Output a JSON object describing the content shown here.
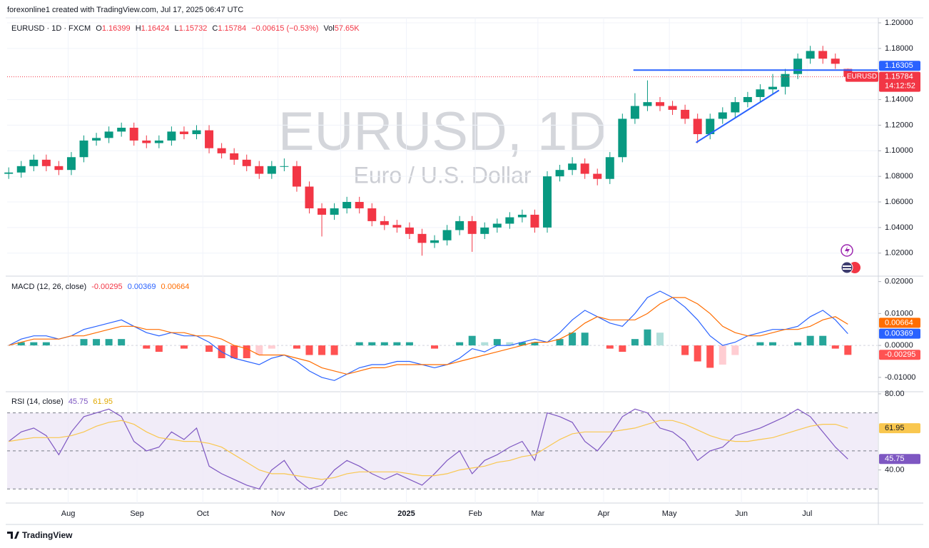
{
  "header": "forexonline1 created with TradingView.com, Jul 17, 2025 06:47 UTC",
  "footer": "TradingView",
  "chart_data": [
    {
      "type": "candlestick",
      "symbol_title": "EURUSD · 1D · FXCM",
      "watermark": "EURUSD, 1D",
      "watermark_sub": "Euro / U.S. Dollar",
      "legend_labels": [
        "O",
        "H",
        "L",
        "C"
      ],
      "change": "−0.00615 (−0.53%)",
      "volume": {
        "label": "Vol",
        "value": "57.65K"
      },
      "price_tag": {
        "label": "EURUSD",
        "countdown": "14:12:52"
      },
      "up_color": "#089981",
      "down_color": "#f23645",
      "x": [
        0,
        4,
        8,
        12,
        16,
        20,
        24,
        28,
        32,
        36,
        40,
        44,
        48,
        52,
        56,
        60,
        64,
        68,
        72,
        76,
        80,
        84,
        88,
        92,
        96,
        100,
        104,
        108,
        112,
        116,
        120,
        124,
        128,
        132,
        136,
        140,
        144,
        148,
        152,
        156,
        160,
        164,
        168,
        172,
        176,
        180,
        184,
        188,
        192,
        196,
        200,
        204,
        208,
        212,
        216,
        220,
        224,
        228,
        232,
        236,
        240,
        244,
        248,
        252,
        256,
        260,
        264,
        268
      ],
      "open": [
        1.082,
        1.083,
        1.088,
        1.093,
        1.088,
        1.085,
        1.095,
        1.108,
        1.11,
        1.115,
        1.118,
        1.108,
        1.106,
        1.108,
        1.115,
        1.113,
        1.116,
        1.102,
        1.098,
        1.093,
        1.088,
        1.082,
        1.088,
        1.088,
        1.072,
        1.055,
        1.05,
        1.055,
        1.06,
        1.055,
        1.045,
        1.042,
        1.04,
        1.035,
        1.028,
        1.03,
        1.038,
        1.045,
        1.035,
        1.04,
        1.043,
        1.048,
        1.05,
        1.04,
        1.08,
        1.085,
        1.09,
        1.082,
        1.078,
        1.095,
        1.125,
        1.135,
        1.138,
        1.135,
        1.132,
        1.125,
        1.113,
        1.125,
        1.13,
        1.138,
        1.142,
        1.148,
        1.15,
        1.16,
        1.172,
        1.178,
        1.172,
        1.16399
      ],
      "high": [
        1.087,
        1.092,
        1.097,
        1.097,
        1.092,
        1.099,
        1.112,
        1.114,
        1.119,
        1.122,
        1.122,
        1.112,
        1.112,
        1.119,
        1.119,
        1.12,
        1.12,
        1.106,
        1.102,
        1.097,
        1.092,
        1.092,
        1.094,
        1.092,
        1.076,
        1.059,
        1.059,
        1.064,
        1.064,
        1.059,
        1.049,
        1.046,
        1.044,
        1.039,
        1.034,
        1.042,
        1.049,
        1.049,
        1.044,
        1.047,
        1.052,
        1.054,
        1.054,
        1.084,
        1.089,
        1.095,
        1.094,
        1.086,
        1.099,
        1.129,
        1.145,
        1.155,
        1.142,
        1.139,
        1.136,
        1.129,
        1.129,
        1.134,
        1.142,
        1.146,
        1.152,
        1.16,
        1.164,
        1.176,
        1.182,
        1.182,
        1.176,
        1.16424
      ],
      "low": [
        1.078,
        1.079,
        1.084,
        1.084,
        1.081,
        1.081,
        1.091,
        1.104,
        1.106,
        1.111,
        1.104,
        1.102,
        1.102,
        1.104,
        1.109,
        1.109,
        1.098,
        1.094,
        1.089,
        1.084,
        1.078,
        1.078,
        1.084,
        1.068,
        1.051,
        1.033,
        1.046,
        1.051,
        1.051,
        1.041,
        1.038,
        1.036,
        1.031,
        1.018,
        1.024,
        1.026,
        1.034,
        1.021,
        1.031,
        1.036,
        1.039,
        1.044,
        1.036,
        1.036,
        1.076,
        1.081,
        1.078,
        1.073,
        1.074,
        1.091,
        1.121,
        1.131,
        1.131,
        1.128,
        1.121,
        1.106,
        1.109,
        1.121,
        1.126,
        1.134,
        1.138,
        1.144,
        1.144,
        1.156,
        1.168,
        1.168,
        1.164,
        1.15732
      ],
      "close": [
        1.083,
        1.088,
        1.093,
        1.088,
        1.085,
        1.095,
        1.108,
        1.11,
        1.115,
        1.118,
        1.108,
        1.106,
        1.108,
        1.115,
        1.113,
        1.116,
        1.102,
        1.098,
        1.093,
        1.088,
        1.082,
        1.088,
        1.088,
        1.072,
        1.055,
        1.05,
        1.055,
        1.06,
        1.055,
        1.045,
        1.042,
        1.04,
        1.035,
        1.028,
        1.03,
        1.038,
        1.045,
        1.035,
        1.04,
        1.043,
        1.048,
        1.05,
        1.04,
        1.08,
        1.085,
        1.09,
        1.082,
        1.078,
        1.095,
        1.125,
        1.135,
        1.138,
        1.135,
        1.132,
        1.125,
        1.113,
        1.125,
        1.13,
        1.138,
        1.142,
        1.148,
        1.15,
        1.16,
        1.172,
        1.178,
        1.172,
        1.168,
        1.15784
      ],
      "drawings": [
        {
          "x": [
            199.5,
            277.5
          ],
          "y": [
            1.16305,
            1.16305
          ],
          "color": "#2962ff"
        },
        {
          "x": [
            219.5,
            246
          ],
          "y": [
            1.1064,
            1.1473
          ],
          "color": "#2962ff"
        }
      ],
      "xlim": [
        -0.5,
        277.5
      ],
      "xticks": [
        {
          "value": 19,
          "label": "Aug"
        },
        {
          "value": 41,
          "label": "Sep"
        },
        {
          "value": 62,
          "label": "Oct"
        },
        {
          "value": 86,
          "label": "Nov"
        },
        {
          "value": 106,
          "label": "Dec"
        },
        {
          "value": 127,
          "label": "2025",
          "bold": true
        },
        {
          "value": 149,
          "label": "Feb"
        },
        {
          "value": 169,
          "label": "Mar"
        },
        {
          "value": 190,
          "label": "Apr"
        },
        {
          "value": 211,
          "label": "May"
        },
        {
          "value": 234,
          "label": "Jun"
        },
        {
          "value": 255,
          "label": "Jul"
        }
      ],
      "ylim": [
        1.002,
        1.2039
      ],
      "yticks": [
        {
          "value": 1.2,
          "label": "1.20000"
        },
        {
          "value": 1.18,
          "label": "1.18000"
        },
        {
          "value": 1.14,
          "label": "1.14000"
        },
        {
          "value": 1.12,
          "label": "1.12000"
        },
        {
          "value": 1.1,
          "label": "1.10000"
        },
        {
          "value": 1.08,
          "label": "1.08000"
        },
        {
          "value": 1.06,
          "label": "1.06000"
        },
        {
          "value": 1.04,
          "label": "1.04000"
        },
        {
          "value": 1.02,
          "label": "1.02000"
        }
      ],
      "grid": true
    },
    {
      "type": "macd",
      "title": "MACD (12, 26, close)",
      "series": [
        {
          "color": "#2962ff",
          "values": [
            0.0,
            0.002,
            0.003,
            0.003,
            0.002,
            0.003,
            0.005,
            0.006,
            0.007,
            0.008,
            0.006,
            0.004,
            0.003,
            0.004,
            0.003,
            0.003,
            0.001,
            -0.002,
            -0.004,
            -0.005,
            -0.006,
            -0.004,
            -0.003,
            -0.005,
            -0.008,
            -0.01,
            -0.011,
            -0.009,
            -0.007,
            -0.006,
            -0.006,
            -0.005,
            -0.005,
            -0.006,
            -0.007,
            -0.006,
            -0.004,
            -0.001,
            -0.002,
            0.0,
            0.0,
            0.001,
            0.002,
            0.001,
            0.004,
            0.008,
            0.011,
            0.009,
            0.007,
            0.006,
            0.01,
            0.015,
            0.017,
            0.015,
            0.012,
            0.008,
            0.003,
            0.0,
            0.001,
            0.003,
            0.004,
            0.005,
            0.005,
            0.006,
            0.009,
            0.011,
            0.008,
            0.00369
          ]
        },
        {
          "color": "#ff6d00",
          "values": [
            0.0,
            0.001,
            0.002,
            0.002,
            0.002,
            0.003,
            0.003,
            0.004,
            0.005,
            0.006,
            0.006,
            0.005,
            0.005,
            0.004,
            0.004,
            0.003,
            0.003,
            0.002,
            0.0,
            -0.001,
            -0.003,
            -0.003,
            -0.003,
            -0.004,
            -0.005,
            -0.007,
            -0.008,
            -0.009,
            -0.008,
            -0.007,
            -0.007,
            -0.006,
            -0.006,
            -0.006,
            -0.006,
            -0.006,
            -0.005,
            -0.004,
            -0.003,
            -0.002,
            -0.001,
            0.0,
            0.001,
            0.001,
            0.002,
            0.004,
            0.007,
            0.009,
            0.008,
            0.008,
            0.008,
            0.01,
            0.013,
            0.015,
            0.015,
            0.013,
            0.01,
            0.006,
            0.004,
            0.003,
            0.003,
            0.004,
            0.005,
            0.005,
            0.006,
            0.008,
            0.009,
            0.00664
          ]
        }
      ],
      "histogram": {
        "colors": [
          "#26a69a",
          "#b2dfdb",
          "#ff5252",
          "#ffcdd2"
        ],
        "values": [
          0,
          0.001,
          0.001,
          0.001,
          0,
          0,
          0.002,
          0.002,
          0.002,
          0.002,
          0,
          -0.001,
          -0.002,
          0,
          -0.001,
          0,
          -0.002,
          -0.004,
          -0.004,
          -0.004,
          -0.003,
          -0.001,
          0,
          -0.001,
          -0.003,
          -0.003,
          -0.003,
          0,
          0.001,
          0.001,
          0.001,
          0.001,
          0.001,
          0,
          -0.001,
          0,
          0.001,
          0.003,
          0.001,
          0.002,
          0.001,
          0.001,
          0.001,
          0,
          0.002,
          0.004,
          0.004,
          0,
          -0.001,
          -0.002,
          0.002,
          0.005,
          0.004,
          0,
          -0.003,
          -0.005,
          -0.007,
          -0.006,
          -0.003,
          0,
          0.001,
          0.001,
          0,
          0.001,
          0.003,
          0.003,
          -0.001,
          -0.00295
        ]
      },
      "ylim": [
        -0.0145,
        0.0217
      ],
      "yticks": [
        {
          "value": 0.02,
          "label": "0.02000"
        },
        {
          "value": 0.01,
          "label": "0.01000"
        },
        {
          "value": 0,
          "label": "0.00000"
        },
        {
          "value": -0.01,
          "label": "-0.01000"
        }
      ]
    },
    {
      "type": "rsi",
      "title": "RSI (14, close)",
      "series": [
        {
          "color": "#7e57c2",
          "values": [
            55,
            60,
            62,
            58,
            48,
            60,
            68,
            70,
            72,
            68,
            55,
            50,
            52,
            60,
            56,
            62,
            42,
            38,
            35,
            32,
            30,
            40,
            45,
            35,
            30,
            32,
            40,
            45,
            42,
            38,
            35,
            38,
            35,
            32,
            38,
            45,
            50,
            38,
            45,
            48,
            52,
            55,
            45,
            70,
            68,
            65,
            55,
            50,
            58,
            68,
            72,
            70,
            62,
            60,
            55,
            45,
            50,
            52,
            58,
            60,
            62,
            65,
            68,
            72,
            68,
            60,
            52,
            45.75
          ]
        },
        {
          "color": "#f9c74f",
          "values": [
            55,
            56,
            57,
            57,
            57,
            58,
            60,
            63,
            65,
            66,
            64,
            60,
            57,
            56,
            55,
            55,
            54,
            52,
            48,
            44,
            40,
            38,
            38,
            37,
            36,
            35,
            36,
            38,
            39,
            39,
            39,
            39,
            38,
            37,
            37,
            38,
            40,
            41,
            42,
            44,
            45,
            47,
            48,
            52,
            56,
            59,
            60,
            60,
            60,
            61,
            62,
            64,
            66,
            66,
            64,
            61,
            58,
            56,
            55,
            55,
            56,
            57,
            59,
            61,
            63,
            64,
            64,
            61.95
          ]
        }
      ],
      "levels": [
        70,
        50,
        30
      ],
      "band_color": "#ede7f6",
      "ylim": [
        22.6,
        81.1
      ],
      "yticks": [
        {
          "value": 80,
          "label": "80.00"
        },
        {
          "value": 40,
          "label": "40.00"
        }
      ]
    }
  ]
}
